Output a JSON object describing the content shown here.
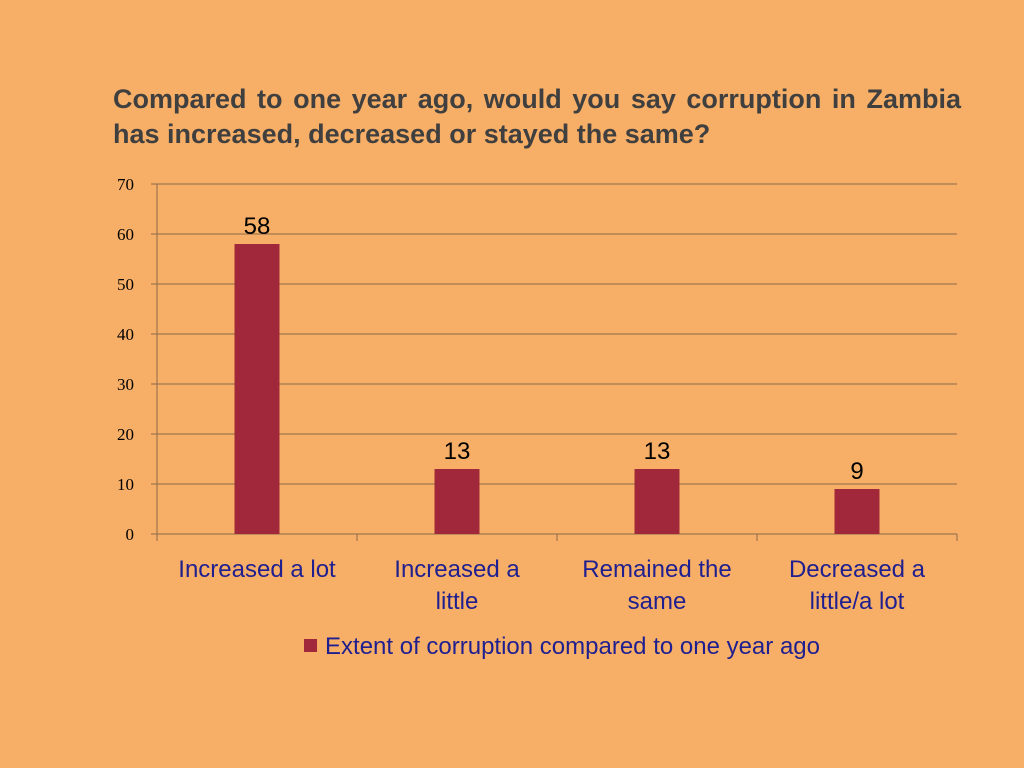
{
  "colors": {
    "background": "#F7AF67",
    "bar": "#A0283A",
    "gridline": "#8C6A4A",
    "title_text": "#3F3F3F",
    "category_text": "#1F1F8F"
  },
  "chart_data": {
    "type": "bar",
    "title": "Compared to one year ago, would you say corruption in Zambia has increased, decreased or stayed the same?",
    "categories": [
      [
        "Increased a lot"
      ],
      [
        "Increased a",
        "little"
      ],
      [
        "Remained the",
        "same"
      ],
      [
        "Decreased a",
        "little/a lot"
      ]
    ],
    "series": [
      {
        "name": "Extent of corruption compared to one year ago",
        "values": [
          58,
          13,
          13,
          9
        ]
      }
    ],
    "ylim": [
      0,
      70
    ],
    "yticks": [
      0,
      10,
      20,
      30,
      40,
      50,
      60,
      70
    ],
    "grid": true,
    "legend": "bottom",
    "data_labels": true
  }
}
